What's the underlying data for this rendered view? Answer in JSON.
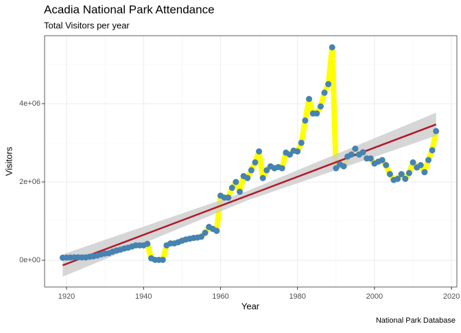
{
  "chart_data": {
    "type": "line",
    "title": "Acadia National Park Attendance",
    "subtitle": "Total Visitors per year",
    "xlabel": "Year",
    "ylabel": "Visitors",
    "caption": "National Park Database",
    "x": [
      1919,
      1920,
      1921,
      1922,
      1923,
      1924,
      1925,
      1926,
      1927,
      1928,
      1929,
      1930,
      1931,
      1932,
      1933,
      1934,
      1935,
      1936,
      1937,
      1938,
      1939,
      1940,
      1941,
      1942,
      1943,
      1944,
      1945,
      1946,
      1947,
      1948,
      1949,
      1950,
      1951,
      1952,
      1953,
      1954,
      1955,
      1956,
      1957,
      1958,
      1959,
      1960,
      1961,
      1962,
      1963,
      1964,
      1965,
      1966,
      1967,
      1968,
      1969,
      1970,
      1971,
      1972,
      1973,
      1974,
      1975,
      1976,
      1977,
      1978,
      1979,
      1980,
      1981,
      1982,
      1983,
      1984,
      1985,
      1986,
      1987,
      1988,
      1989,
      1990,
      1991,
      1992,
      1993,
      1994,
      1995,
      1996,
      1997,
      1998,
      1999,
      2000,
      2001,
      2002,
      2003,
      2004,
      2005,
      2006,
      2007,
      2008,
      2009,
      2010,
      2011,
      2012,
      2013,
      2014,
      2015,
      2016
    ],
    "series": [
      {
        "name": "Visitors",
        "color": "#ffff00",
        "point_color": "#4682b4",
        "values": [
          64000,
          66000,
          70000,
          73000,
          75000,
          72000,
          73000,
          90000,
          100000,
          120000,
          150000,
          170000,
          180000,
          220000,
          250000,
          270000,
          300000,
          320000,
          350000,
          380000,
          380000,
          380000,
          420000,
          50000,
          10000,
          10000,
          10000,
          380000,
          430000,
          430000,
          460000,
          500000,
          530000,
          550000,
          570000,
          580000,
          600000,
          700000,
          850000,
          800000,
          750000,
          1650000,
          1600000,
          1600000,
          1850000,
          2000000,
          1750000,
          2150000,
          2100000,
          2300000,
          2500000,
          2780000,
          2100000,
          2300000,
          2400000,
          2350000,
          2380000,
          2350000,
          2750000,
          2700000,
          2800000,
          2780000,
          3000000,
          3570000,
          4120000,
          3750000,
          3750000,
          3930000,
          4280000,
          4500000,
          5440000,
          2350000,
          2450000,
          2400000,
          2650000,
          2700000,
          2850000,
          2700000,
          2760000,
          2600000,
          2600000,
          2470000,
          2520000,
          2560000,
          2430000,
          2200000,
          2050000,
          2080000,
          2200000,
          2080000,
          2230000,
          2500000,
          2370000,
          2430000,
          2250000,
          2560000,
          2810000,
          3300000
        ]
      }
    ],
    "trend": {
      "color": "#b2182b",
      "band_color": "#cccccc",
      "x": [
        1919,
        1967,
        2016
      ],
      "values": [
        -130000,
        1650000,
        3470000
      ],
      "lower": [
        -420000,
        1530000,
        3180000
      ],
      "upper": [
        150000,
        1770000,
        3770000
      ]
    },
    "xlim": [
      1914.3,
      2021.4
    ],
    "ylim": [
      -684000,
      5737000
    ],
    "xticks": [
      1920,
      1940,
      1960,
      1980,
      2000,
      2020
    ],
    "yticks": [
      {
        "value": 0,
        "label": "0e+00"
      },
      {
        "value": 2000000,
        "label": "2e+06"
      },
      {
        "value": 4000000,
        "label": "4e+06"
      }
    ],
    "xminor": [
      1930,
      1950,
      1970,
      1990,
      2010
    ],
    "yminor": [
      1000000,
      3000000,
      5000000
    ],
    "grid": true
  }
}
